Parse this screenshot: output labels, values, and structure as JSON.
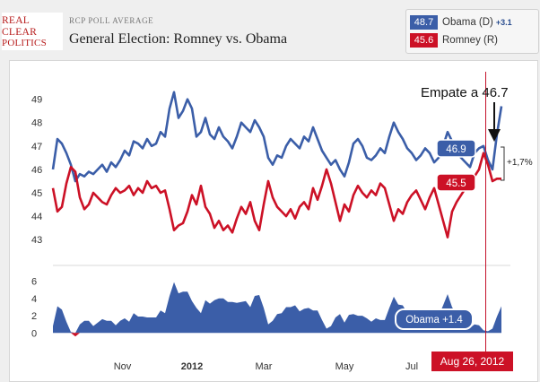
{
  "brand": {
    "line1": "REAL",
    "line2": "CLEAR",
    "line3": "POLITICS"
  },
  "header": {
    "kicker": "RCP POLL AVERAGE",
    "title": "General Election: Romney vs. Obama"
  },
  "legend": {
    "obama": {
      "value": "48.7",
      "name": "Obama (D)",
      "change": "+3.1",
      "color": "#3b5ea8"
    },
    "romney": {
      "value": "45.6",
      "name": "Romney (R)",
      "color": "#cc1126"
    }
  },
  "annotations": {
    "empate": "Empate a 46.7",
    "obama_badge": "46.9",
    "romney_badge": "45.5",
    "diff": "+1,7%",
    "spread_badge": "Obama +1.4",
    "date_badge": "Aug 26, 2012"
  },
  "chart_data": [
    {
      "type": "line",
      "series": [
        {
          "name": "Obama",
          "color": "#3b5ea8",
          "x": [
            0,
            0.01,
            0.02,
            0.03,
            0.04,
            0.05,
            0.06,
            0.07,
            0.08,
            0.09,
            0.1,
            0.11,
            0.12,
            0.13,
            0.14,
            0.15,
            0.16,
            0.17,
            0.18,
            0.19,
            0.2,
            0.21,
            0.22,
            0.23,
            0.24,
            0.25,
            0.26,
            0.27,
            0.28,
            0.29,
            0.3,
            0.31,
            0.32,
            0.33,
            0.34,
            0.35,
            0.36,
            0.37,
            0.38,
            0.39,
            0.4,
            0.41,
            0.42,
            0.43,
            0.44,
            0.45,
            0.46,
            0.47,
            0.48,
            0.49,
            0.5,
            0.51,
            0.52,
            0.53,
            0.54,
            0.55,
            0.56,
            0.57,
            0.58,
            0.59,
            0.6,
            0.61,
            0.62,
            0.63,
            0.64,
            0.65,
            0.66,
            0.67,
            0.68,
            0.69,
            0.7,
            0.71,
            0.72,
            0.73,
            0.74,
            0.75,
            0.76,
            0.77,
            0.78,
            0.79,
            0.8,
            0.81,
            0.82,
            0.83,
            0.84,
            0.85,
            0.86,
            0.87,
            0.88,
            0.89,
            0.9,
            0.91,
            0.92,
            0.93,
            0.94,
            0.95,
            0.96,
            0.97,
            0.98,
            0.99,
            1.0
          ],
          "values": [
            46.0,
            47.3,
            47.1,
            46.7,
            46.2,
            45.5,
            45.8,
            45.7,
            45.9,
            45.8,
            46.0,
            46.2,
            45.9,
            46.3,
            46.1,
            46.4,
            46.8,
            46.6,
            47.2,
            47.1,
            46.9,
            47.3,
            47.0,
            47.1,
            47.6,
            47.4,
            48.6,
            49.3,
            48.2,
            48.5,
            49.0,
            48.6,
            47.4,
            47.6,
            48.2,
            47.5,
            47.3,
            47.8,
            47.4,
            47.2,
            46.9,
            47.4,
            48.0,
            47.8,
            47.6,
            48.1,
            47.8,
            47.4,
            46.5,
            46.2,
            46.6,
            46.5,
            47.0,
            47.3,
            47.1,
            46.9,
            47.4,
            47.2,
            47.8,
            47.3,
            46.8,
            46.5,
            46.2,
            46.4,
            46.0,
            45.7,
            46.3,
            47.1,
            47.3,
            47.0,
            46.5,
            46.4,
            46.6,
            46.9,
            46.7,
            47.4,
            48.0,
            47.6,
            47.3,
            46.9,
            46.7,
            46.4,
            46.6,
            46.9,
            46.7,
            46.3,
            46.5,
            47.0,
            47.6,
            47.2,
            46.8,
            46.5,
            46.3,
            46.1,
            46.7,
            46.9,
            47.0,
            46.4,
            46.0,
            47.5,
            48.7
          ]
        },
        {
          "name": "Romney",
          "color": "#cc1126",
          "x": [
            0,
            0.01,
            0.02,
            0.03,
            0.04,
            0.05,
            0.06,
            0.07,
            0.08,
            0.09,
            0.1,
            0.11,
            0.12,
            0.13,
            0.14,
            0.15,
            0.16,
            0.17,
            0.18,
            0.19,
            0.2,
            0.21,
            0.22,
            0.23,
            0.24,
            0.25,
            0.26,
            0.27,
            0.28,
            0.29,
            0.3,
            0.31,
            0.32,
            0.33,
            0.34,
            0.35,
            0.36,
            0.37,
            0.38,
            0.39,
            0.4,
            0.41,
            0.42,
            0.43,
            0.44,
            0.45,
            0.46,
            0.47,
            0.48,
            0.49,
            0.5,
            0.51,
            0.52,
            0.53,
            0.54,
            0.55,
            0.56,
            0.57,
            0.58,
            0.59,
            0.6,
            0.61,
            0.62,
            0.63,
            0.64,
            0.65,
            0.66,
            0.67,
            0.68,
            0.69,
            0.7,
            0.71,
            0.72,
            0.73,
            0.74,
            0.75,
            0.76,
            0.77,
            0.78,
            0.79,
            0.8,
            0.81,
            0.82,
            0.83,
            0.84,
            0.85,
            0.86,
            0.87,
            0.88,
            0.89,
            0.9,
            0.91,
            0.92,
            0.93,
            0.94,
            0.95,
            0.96,
            0.97,
            0.98,
            0.99,
            1.0
          ],
          "values": [
            45.2,
            44.2,
            44.4,
            45.4,
            46.1,
            45.9,
            44.8,
            44.3,
            44.5,
            45.0,
            44.8,
            44.6,
            44.5,
            44.9,
            45.2,
            45.0,
            45.1,
            45.3,
            44.9,
            45.2,
            45.0,
            45.5,
            45.2,
            45.3,
            45.0,
            45.1,
            44.3,
            43.4,
            43.6,
            43.7,
            44.2,
            44.9,
            44.5,
            45.3,
            44.4,
            44.1,
            43.5,
            43.8,
            43.4,
            43.6,
            43.3,
            43.9,
            44.4,
            44.1,
            44.6,
            43.8,
            43.4,
            44.5,
            45.5,
            44.8,
            44.4,
            44.2,
            44.0,
            44.3,
            43.9,
            44.4,
            44.6,
            44.3,
            45.2,
            44.7,
            45.3,
            46.0,
            45.4,
            44.6,
            43.8,
            44.5,
            44.2,
            44.9,
            45.3,
            45.0,
            44.8,
            45.1,
            44.9,
            45.4,
            45.2,
            44.5,
            43.8,
            44.3,
            44.1,
            44.6,
            44.9,
            45.1,
            44.7,
            44.3,
            44.8,
            45.2,
            44.5,
            43.8,
            43.1,
            44.2,
            44.6,
            44.9,
            45.2,
            45.5,
            45.7,
            46.0,
            46.7,
            46.2,
            45.5,
            45.6,
            45.6
          ]
        }
      ],
      "ylim": [
        42.7,
        49.6
      ],
      "yticks": [
        "49",
        "48",
        "47",
        "46",
        "45",
        "44",
        "43"
      ],
      "xticks": [
        "Nov",
        "2012",
        "Mar",
        "May",
        "Jul"
      ]
    },
    {
      "type": "area",
      "series": [
        {
          "name": "Obama +",
          "color": "#3b5ea8",
          "x": [
            0,
            0.01,
            0.02,
            0.03,
            0.04,
            0.05,
            0.06,
            0.07,
            0.08,
            0.09,
            0.1,
            0.11,
            0.12,
            0.13,
            0.14,
            0.15,
            0.16,
            0.17,
            0.18,
            0.19,
            0.2,
            0.21,
            0.22,
            0.23,
            0.24,
            0.25,
            0.26,
            0.27,
            0.28,
            0.29,
            0.3,
            0.31,
            0.32,
            0.33,
            0.34,
            0.35,
            0.36,
            0.37,
            0.38,
            0.39,
            0.4,
            0.41,
            0.42,
            0.43,
            0.44,
            0.45,
            0.46,
            0.47,
            0.48,
            0.49,
            0.5,
            0.51,
            0.52,
            0.53,
            0.54,
            0.55,
            0.56,
            0.57,
            0.58,
            0.59,
            0.6,
            0.61,
            0.62,
            0.63,
            0.64,
            0.65,
            0.66,
            0.67,
            0.68,
            0.69,
            0.7,
            0.71,
            0.72,
            0.73,
            0.74,
            0.75,
            0.76,
            0.77,
            0.78,
            0.79,
            0.8,
            0.81,
            0.82,
            0.83,
            0.84,
            0.85,
            0.86,
            0.87,
            0.88,
            0.89,
            0.9,
            0.91,
            0.92,
            0.93,
            0.94,
            0.95,
            0.96,
            0.97,
            0.98,
            0.99,
            1.0
          ],
          "values": [
            0.8,
            3.1,
            2.7,
            1.3,
            0.1,
            -0.4,
            1.0,
            1.4,
            1.4,
            0.8,
            1.2,
            1.6,
            1.4,
            1.4,
            0.9,
            1.4,
            1.7,
            1.3,
            2.3,
            1.9,
            1.9,
            1.8,
            1.8,
            1.8,
            2.6,
            2.3,
            4.3,
            5.9,
            4.6,
            4.8,
            4.8,
            3.7,
            2.9,
            2.3,
            3.8,
            3.4,
            3.8,
            4.0,
            4.0,
            3.6,
            3.6,
            3.5,
            3.6,
            3.7,
            3.0,
            4.3,
            4.4,
            2.9,
            1.0,
            1.4,
            2.2,
            2.3,
            3.0,
            3.0,
            3.2,
            2.5,
            2.8,
            2.9,
            2.6,
            2.6,
            1.5,
            0.5,
            0.8,
            1.8,
            2.2,
            1.2,
            2.1,
            2.2,
            2.0,
            2.0,
            1.7,
            1.3,
            1.7,
            1.5,
            1.5,
            2.9,
            4.2,
            3.3,
            3.2,
            2.3,
            1.8,
            1.3,
            1.9,
            2.6,
            1.9,
            1.1,
            2.0,
            3.2,
            4.5,
            3.0,
            2.2,
            1.6,
            1.1,
            0.6,
            1.0,
            0.9,
            0.3,
            0.2,
            0.5,
            1.9,
            3.1
          ]
        }
      ],
      "ylim": [
        -0.8,
        7
      ],
      "yticks": [
        "6",
        "4",
        "2",
        "0"
      ]
    }
  ]
}
